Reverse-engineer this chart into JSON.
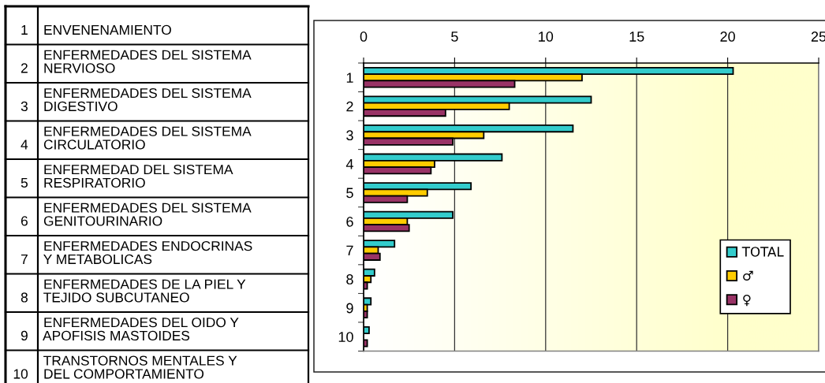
{
  "chart_data": [
    {
      "type": "other",
      "annotations": [
        "1 ENVENENAMIENTO",
        "ENFERMEDADES DEL SISTEMA\n2 NERVIOSO",
        "ENFERMEDADES DEL SISTEMA\n3 DIGESTIVO",
        "ENFERMEDADES DEL SISTEMA\n4 CIRCULATORIO",
        "ENFERMEDAD DEL SISTEMA\n5 RESPIRATORIO",
        "ENFERMEDADES DEL SISTEMA\n6 GENITOURINARIO",
        "ENFERMEDADES ENDOCRINAS\n7 Y METABOLICAS",
        "ENFERMEDADES DE LA PIEL Y\n8 TEJIDO SUBCUTANEO",
        "ENFERMEDADES DEL OIDO Y\n9 APOFISIS MASTOIDES",
        "TRANSTORNOS MENTALES Y\n10 DEL COMPORTAMIENTO"
      ]
    },
    {
      "type": "bar",
      "orientation": "horizontal",
      "categories": [
        "1",
        "2",
        "3",
        "4",
        "5",
        "6",
        "7",
        "8",
        "9",
        "10"
      ],
      "series": [
        {
          "name": "TOTAL",
          "color": "#33cccc",
          "values": [
            20.3,
            12.5,
            11.5,
            7.6,
            5.9,
            4.9,
            1.7,
            0.6,
            0.4,
            0.3
          ]
        },
        {
          "name": "♂",
          "color": "#ffcc00",
          "values": [
            12.0,
            8.0,
            6.6,
            3.9,
            3.5,
            2.4,
            0.8,
            0.4,
            0.2,
            null
          ]
        },
        {
          "name": "♀",
          "color": "#993366",
          "values": [
            8.3,
            4.5,
            4.9,
            3.7,
            2.4,
            2.5,
            0.9,
            0.2,
            0.2,
            0.2
          ]
        }
      ],
      "xlim": [
        0,
        25
      ],
      "xticks": [
        0,
        5,
        10,
        15,
        20,
        25
      ],
      "grid": "x",
      "legend": "right"
    }
  ]
}
